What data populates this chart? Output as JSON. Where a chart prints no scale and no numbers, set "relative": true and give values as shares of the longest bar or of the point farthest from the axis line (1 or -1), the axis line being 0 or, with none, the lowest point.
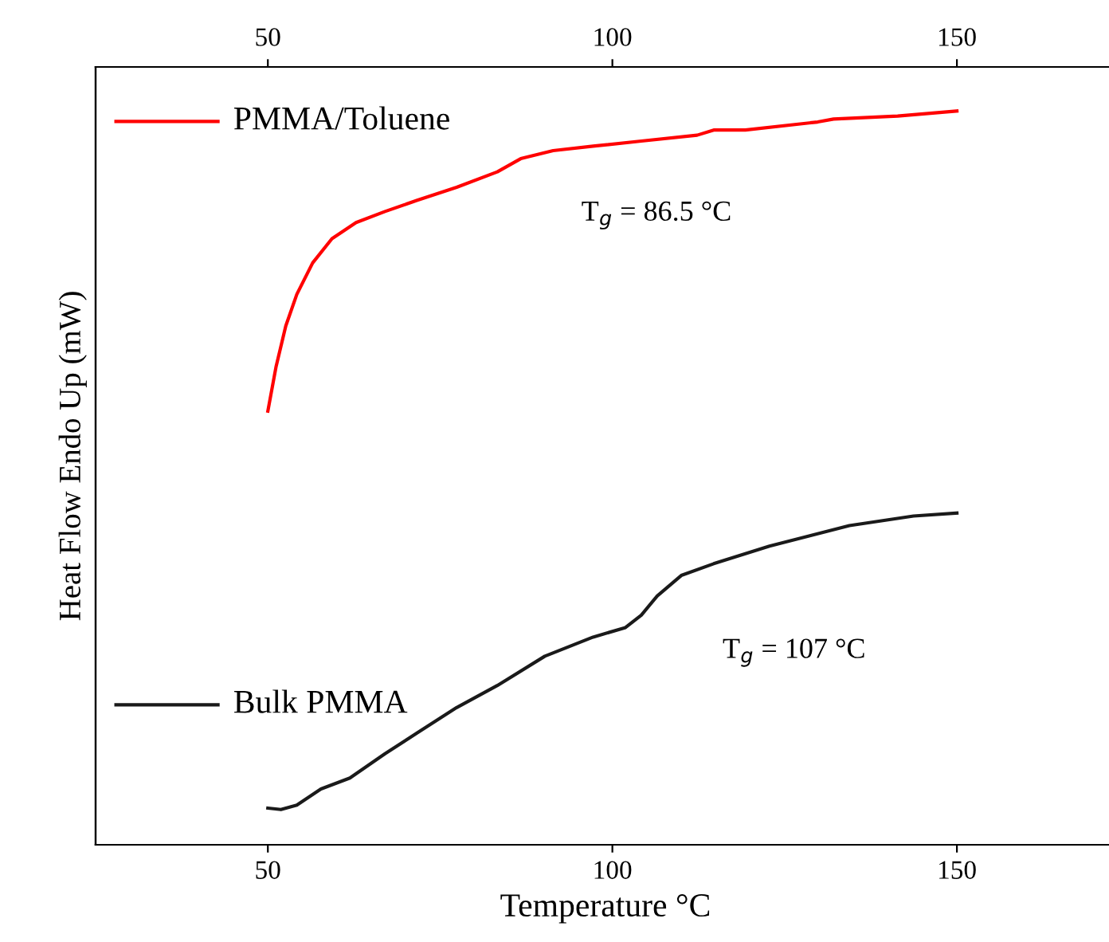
{
  "chart_data": {
    "type": "line",
    "xlabel": "Temperature °C",
    "ylabel": "Heat Flow Endo Up (mW)",
    "relative": true,
    "xlim": [
      25,
      173
    ],
    "xticks": [
      50,
      100,
      150
    ],
    "x2lim": [
      25,
      173
    ],
    "x2ticks": [
      50,
      100,
      150
    ],
    "tick_labels": "x",
    "grid": false,
    "legend": "left",
    "line_style": "solid",
    "marker": "none",
    "series": [
      {
        "name": "PMMA/Toluene",
        "color": "#ff0000",
        "x": [
          50,
          51.2,
          52.6,
          54.2,
          56.5,
          59.3,
          62.8,
          67,
          71.6,
          77.4,
          83.3,
          86.7,
          91.4,
          97.2,
          104.2,
          112.3,
          114.7,
          119.3,
          129.8,
          132.1,
          141.4,
          150
        ],
        "values": [
          0.591,
          0.652,
          0.707,
          0.75,
          0.793,
          0.826,
          0.848,
          0.863,
          0.878,
          0.896,
          0.917,
          0.935,
          0.946,
          0.952,
          0.959,
          0.967,
          0.974,
          0.974,
          0.985,
          0.989,
          0.993,
          1.0
        ]
      },
      {
        "name": "Bulk PMMA",
        "color": "#1a1a1a",
        "x": [
          50,
          51.9,
          54.2,
          57.7,
          61.9,
          67,
          71.6,
          77.4,
          83.3,
          90.2,
          97.2,
          101.9,
          104.2,
          106.5,
          110,
          114.7,
          122.8,
          134.4,
          143.7,
          150
        ],
        "values": [
          0.05,
          0.048,
          0.054,
          0.076,
          0.091,
          0.124,
          0.152,
          0.187,
          0.217,
          0.257,
          0.283,
          0.296,
          0.313,
          0.339,
          0.367,
          0.383,
          0.407,
          0.435,
          0.448,
          0.452
        ]
      }
    ],
    "annotations": [
      {
        "text": "T$_{g}$ = 86.5 °C",
        "x": 86.5,
        "y": 0.935
      },
      {
        "text": "T$_{g}$ = 107 °C",
        "x": 107,
        "y": 0.339
      }
    ]
  }
}
